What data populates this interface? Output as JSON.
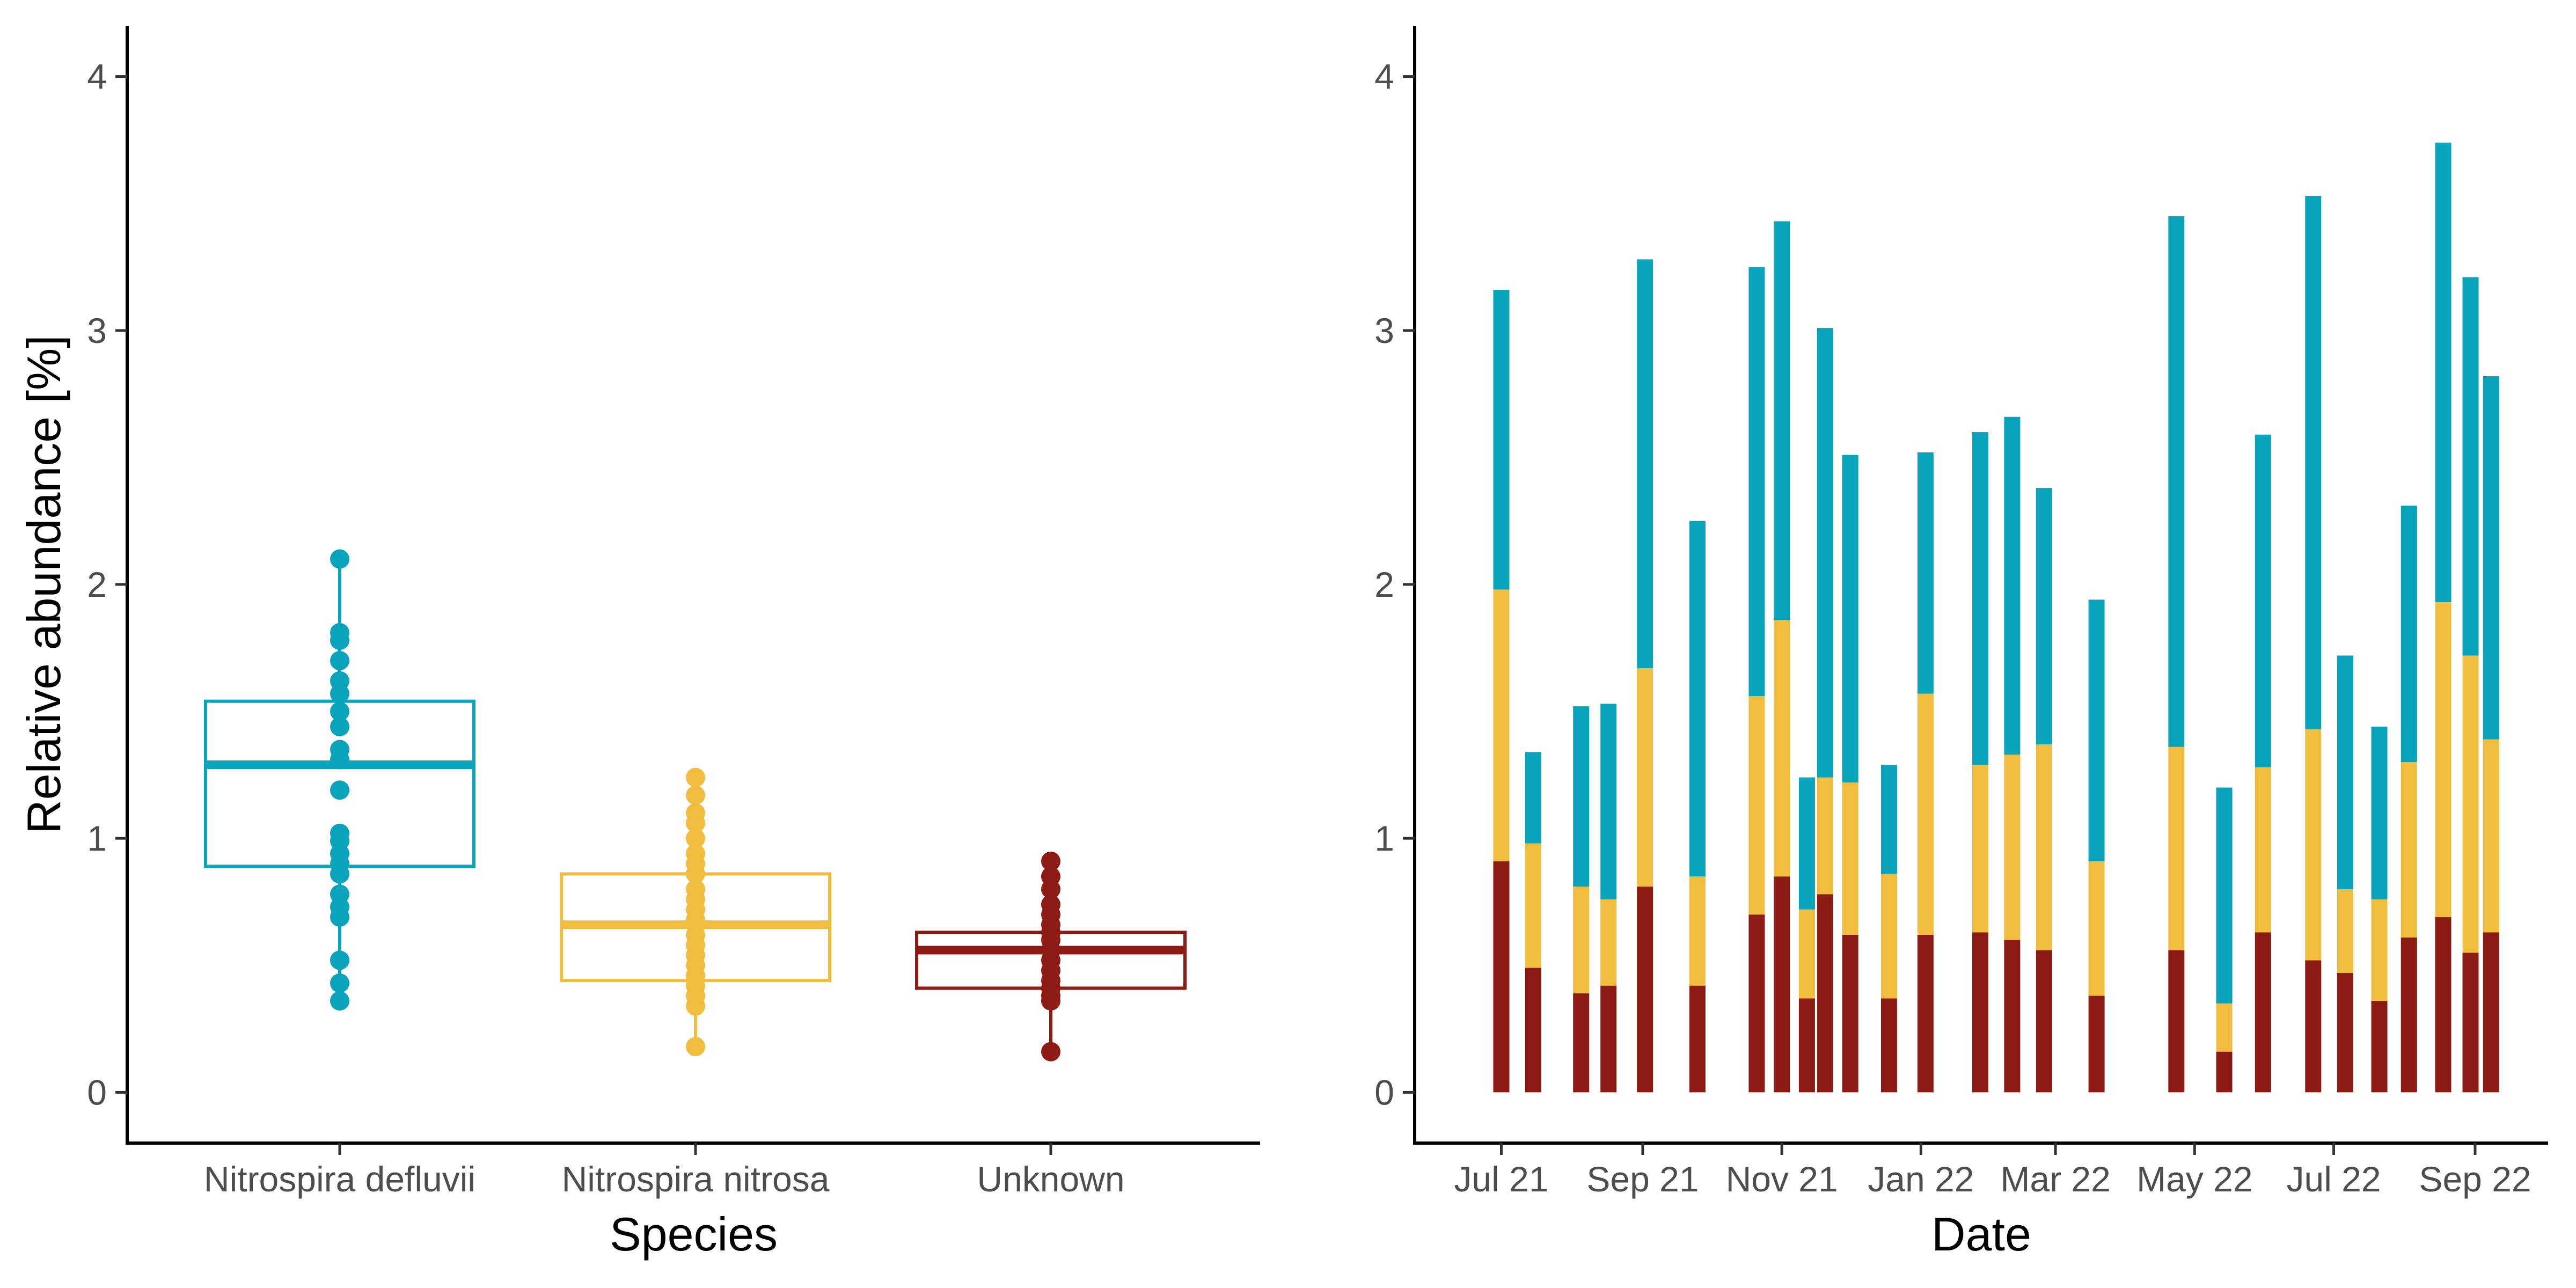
{
  "colors": {
    "defluvii": "#0aa3bc",
    "nitrosa": "#f0bd3e",
    "unknown": "#8e1b13"
  },
  "chart_data": [
    {
      "type": "box",
      "xlabel": "Species",
      "ylabel": "Relative abundance [%]",
      "ylim": [
        -0.2,
        4.2
      ],
      "yticks": [
        0,
        1,
        2,
        3,
        4
      ],
      "grid": false,
      "boxes": [
        {
          "name": "Nitrospira defluvii",
          "color_key": "defluvii",
          "q1": 0.89,
          "median": 1.29,
          "q3": 1.54,
          "whisker_low": 0.36,
          "whisker_high": 2.1,
          "points": [
            2.1,
            1.81,
            1.78,
            1.7,
            1.62,
            1.57,
            1.5,
            1.44,
            1.35,
            1.31,
            1.19,
            1.02,
            0.99,
            0.94,
            0.9,
            0.86,
            0.78,
            0.73,
            0.69,
            0.52,
            0.43,
            0.36
          ]
        },
        {
          "name": "Nitrospira nitrosa",
          "color_key": "nitrosa",
          "q1": 0.44,
          "median": 0.66,
          "q3": 0.86,
          "whisker_low": 0.18,
          "whisker_high": 1.24,
          "points": [
            1.24,
            1.17,
            1.1,
            1.06,
            1.0,
            0.94,
            0.9,
            0.86,
            0.8,
            0.76,
            0.72,
            0.68,
            0.62,
            0.58,
            0.54,
            0.5,
            0.46,
            0.42,
            0.38,
            0.34,
            0.18
          ]
        },
        {
          "name": "Unknown",
          "color_key": "unknown",
          "q1": 0.41,
          "median": 0.56,
          "q3": 0.63,
          "whisker_low": 0.16,
          "whisker_high": 0.91,
          "points": [
            0.91,
            0.85,
            0.8,
            0.74,
            0.7,
            0.66,
            0.63,
            0.6,
            0.56,
            0.52,
            0.48,
            0.44,
            0.41,
            0.38,
            0.36,
            0.16
          ]
        }
      ]
    },
    {
      "type": "stacked-bar",
      "xlabel": "Date",
      "ylabel": "",
      "ylim": [
        -0.2,
        4.2
      ],
      "yticks": [
        0,
        1,
        2,
        3,
        4
      ],
      "grid": false,
      "x_ticks": [
        "Jul 21",
        "Sep 21",
        "Nov 21",
        "Jan 22",
        "Mar 22",
        "May 22",
        "Jul 22",
        "Sep 22"
      ],
      "x_tick_dates": [
        "2021-07-01",
        "2021-09-01",
        "2021-11-01",
        "2022-01-01",
        "2022-03-01",
        "2022-05-01",
        "2022-07-01",
        "2022-09-01"
      ],
      "x_range": [
        "2021-05-24",
        "2022-10-03"
      ],
      "stack_order_bottom_to_top": [
        "unknown",
        "nitrosa",
        "defluvii"
      ],
      "bars": [
        {
          "date": "2021-07-01",
          "unknown": 0.91,
          "nitrosa": 1.07,
          "defluvii": 1.18
        },
        {
          "date": "2021-07-15",
          "unknown": 0.49,
          "nitrosa": 0.49,
          "defluvii": 0.36
        },
        {
          "date": "2021-08-05",
          "unknown": 0.39,
          "nitrosa": 0.42,
          "defluvii": 0.71
        },
        {
          "date": "2021-08-17",
          "unknown": 0.42,
          "nitrosa": 0.34,
          "defluvii": 0.77
        },
        {
          "date": "2021-09-02",
          "unknown": 0.81,
          "nitrosa": 0.86,
          "defluvii": 1.61
        },
        {
          "date": "2021-09-25",
          "unknown": 0.42,
          "nitrosa": 0.43,
          "defluvii": 1.4
        },
        {
          "date": "2021-10-21",
          "unknown": 0.7,
          "nitrosa": 0.86,
          "defluvii": 1.69
        },
        {
          "date": "2021-11-01",
          "unknown": 0.85,
          "nitrosa": 1.01,
          "defluvii": 1.57
        },
        {
          "date": "2021-11-12",
          "unknown": 0.37,
          "nitrosa": 0.35,
          "defluvii": 0.52
        },
        {
          "date": "2021-11-20",
          "unknown": 0.78,
          "nitrosa": 0.46,
          "defluvii": 1.77
        },
        {
          "date": "2021-12-01",
          "unknown": 0.62,
          "nitrosa": 0.6,
          "defluvii": 1.29
        },
        {
          "date": "2021-12-18",
          "unknown": 0.37,
          "nitrosa": 0.49,
          "defluvii": 0.43
        },
        {
          "date": "2022-01-03",
          "unknown": 0.62,
          "nitrosa": 0.95,
          "defluvii": 0.95
        },
        {
          "date": "2022-01-27",
          "unknown": 0.63,
          "nitrosa": 0.66,
          "defluvii": 1.31
        },
        {
          "date": "2022-02-10",
          "unknown": 0.6,
          "nitrosa": 0.73,
          "defluvii": 1.33
        },
        {
          "date": "2022-02-24",
          "unknown": 0.56,
          "nitrosa": 0.81,
          "defluvii": 1.01
        },
        {
          "date": "2022-03-19",
          "unknown": 0.38,
          "nitrosa": 0.53,
          "defluvii": 1.03
        },
        {
          "date": "2022-04-23",
          "unknown": 0.56,
          "nitrosa": 0.8,
          "defluvii": 2.09
        },
        {
          "date": "2022-05-14",
          "unknown": 0.16,
          "nitrosa": 0.19,
          "defluvii": 0.85
        },
        {
          "date": "2022-05-31",
          "unknown": 0.63,
          "nitrosa": 0.65,
          "defluvii": 1.31
        },
        {
          "date": "2022-06-22",
          "unknown": 0.52,
          "nitrosa": 0.91,
          "defluvii": 2.1
        },
        {
          "date": "2022-07-06",
          "unknown": 0.47,
          "nitrosa": 0.33,
          "defluvii": 0.92
        },
        {
          "date": "2022-07-21",
          "unknown": 0.36,
          "nitrosa": 0.4,
          "defluvii": 0.68
        },
        {
          "date": "2022-08-03",
          "unknown": 0.61,
          "nitrosa": 0.69,
          "defluvii": 1.01
        },
        {
          "date": "2022-08-18",
          "unknown": 0.69,
          "nitrosa": 1.24,
          "defluvii": 1.81
        },
        {
          "date": "2022-08-30",
          "unknown": 0.55,
          "nitrosa": 1.17,
          "defluvii": 1.49
        },
        {
          "date": "2022-09-08",
          "unknown": 0.63,
          "nitrosa": 0.76,
          "defluvii": 1.43
        }
      ]
    }
  ]
}
